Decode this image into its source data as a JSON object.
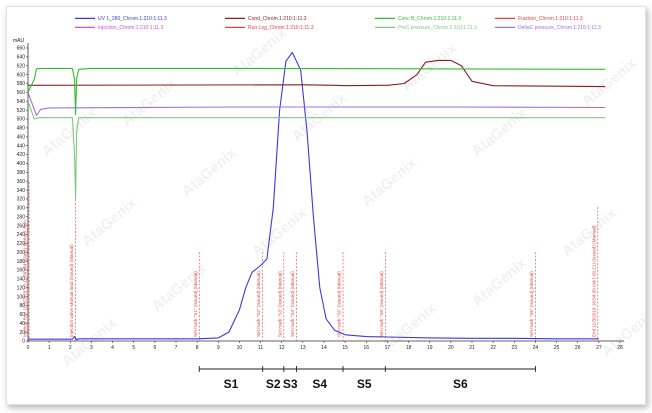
{
  "chart_data": {
    "type": "line",
    "y_unit": "mAU",
    "xlim": [
      0,
      28
    ],
    "ylim": [
      0,
      660
    ],
    "x_ticks": [
      0,
      1,
      2,
      3,
      4,
      5,
      6,
      7,
      8,
      9,
      10,
      11,
      12,
      13,
      14,
      15,
      16,
      17,
      18,
      19,
      20,
      21,
      22,
      23,
      24,
      25,
      26,
      27,
      28
    ],
    "y_ticks": [
      0,
      20,
      40,
      60,
      80,
      100,
      120,
      140,
      160,
      180,
      200,
      220,
      240,
      260,
      280,
      300,
      320,
      340,
      360,
      380,
      400,
      420,
      440,
      460,
      480,
      500,
      520,
      540,
      560,
      580,
      600,
      620,
      640,
      660
    ],
    "legend": [
      {
        "name": "UV 1_280_Chrom.1:210:1:11.3",
        "color": "#3a3adf"
      },
      {
        "name": "Cond_Chrom.1:210:1:11.3",
        "color": "#8b1e1e"
      },
      {
        "name": "Conc B_Chrom.1:210:1:11.3",
        "color": "#2fbf2f"
      },
      {
        "name": "Fraction_Chrom.1:210:1:11.3",
        "color": "#e0443c"
      },
      {
        "name": "Injection_Chrom.1:210:1:11.3",
        "color": "#d050d0"
      },
      {
        "name": "Run Log_Chrom.1:210:1:11.3",
        "color": "#e0443c"
      },
      {
        "name": "PreC pressure_Chrom.1:210:1:11.3",
        "color": "#7fc97f"
      },
      {
        "name": "DeltaC pressure_Chrom.1:210:1:11.3",
        "color": "#a070e0"
      }
    ],
    "series": [
      {
        "name": "UV 1_280_Chrom.1:210:1:11.3",
        "color": "#3a3adf",
        "x": [
          0,
          2.1,
          2.2,
          2.28,
          2.4,
          8,
          9,
          9.5,
          10,
          10.3,
          10.6,
          11,
          11.3,
          11.6,
          11.9,
          12.2,
          12.5,
          12.9,
          13.2,
          13.5,
          13.8,
          14.1,
          14.5,
          15,
          16,
          17,
          19,
          21,
          23,
          25,
          27
        ],
        "y": [
          4,
          4,
          10,
          3,
          5,
          5,
          7,
          20,
          70,
          120,
          155,
          170,
          185,
          300,
          520,
          630,
          650,
          610,
          470,
          280,
          120,
          50,
          24,
          14,
          10,
          9,
          7,
          6,
          6,
          5,
          5
        ]
      },
      {
        "name": "Cond_Chrom.1:210:1:11.3",
        "color": "#8b1e1e",
        "x": [
          0,
          13,
          14.5,
          15,
          17,
          17.8,
          18.4,
          18.8,
          19.4,
          20,
          20.5,
          21,
          22,
          25,
          27.3
        ],
        "y": [
          576,
          577,
          576,
          575,
          576,
          580,
          600,
          628,
          632,
          632,
          620,
          585,
          575,
          574,
          573
        ]
      },
      {
        "name": "Conc B_Chrom.1:210:1:11.3",
        "color": "#2fbf2f",
        "x": [
          0,
          0.3,
          0.4,
          0.6,
          2.1,
          2.2,
          2.25,
          2.3,
          2.4,
          3,
          10,
          20,
          27.3
        ],
        "y": [
          560,
          590,
          613,
          614,
          614,
          590,
          510,
          590,
          612,
          614,
          614,
          613,
          612
        ]
      },
      {
        "name": "DeltaC pressure_Chrom.1:210:1:11.3",
        "color": "#a070e0",
        "x": [
          0,
          0.4,
          0.6,
          1,
          10,
          20,
          27.3
        ],
        "y": [
          560,
          508,
          522,
          525,
          527,
          527,
          526
        ]
      },
      {
        "name": "PreC pressure_Chrom.1:210:1:11.3",
        "color": "#7fc97f",
        "x": [
          0,
          0.3,
          0.5,
          2.1,
          2.2,
          2.25,
          2.3,
          2.4,
          27.3
        ],
        "y": [
          540,
          500,
          503,
          503,
          420,
          320,
          470,
          503,
          503
        ]
      }
    ],
    "markers": [
      {
        "x": 0.05,
        "label": "Method Run 11/3/2018 10:11:09 AM (Glass) Method_Run"
      },
      {
        "x": 2.25,
        "label": "Injection valve Manual load (Issued) (Manual)"
      },
      {
        "x": 8.1,
        "label": "Set mark \"S1\" (Issued) (Manual)"
      },
      {
        "x": 11.1,
        "label": "Set mark \"S2\" (Issued) (Manual)"
      },
      {
        "x": 12.1,
        "label": "Set mark \"S3\" (Issued) (Manual)"
      },
      {
        "x": 12.7,
        "label": "Set mark \"S4\" (Issued) (Manual)"
      },
      {
        "x": 14.9,
        "label": "Set mark \"S5\" (Issued) (Manual)"
      },
      {
        "x": 16.9,
        "label": "Set mark \"S6\" (Issued) (Manual)"
      },
      {
        "x": 24.0,
        "label": "Set mark \"S6\" (Issued) (Manual)"
      },
      {
        "x": 26.95,
        "label": "End 11/3/2018 10:54:39 AM (-00:21) (Issued) (Manual)"
      }
    ],
    "sections": [
      {
        "label": "S1",
        "from": 8.1,
        "to": 11.1
      },
      {
        "label": "S2",
        "from": 11.1,
        "to": 12.1
      },
      {
        "label": "S3",
        "from": 12.1,
        "to": 12.7
      },
      {
        "label": "S4",
        "from": 12.7,
        "to": 14.9
      },
      {
        "label": "S5",
        "from": 14.9,
        "to": 16.9
      },
      {
        "label": "S6",
        "from": 16.9,
        "to": 24.0
      }
    ],
    "watermark": "AtaGenix",
    "grid": false
  }
}
